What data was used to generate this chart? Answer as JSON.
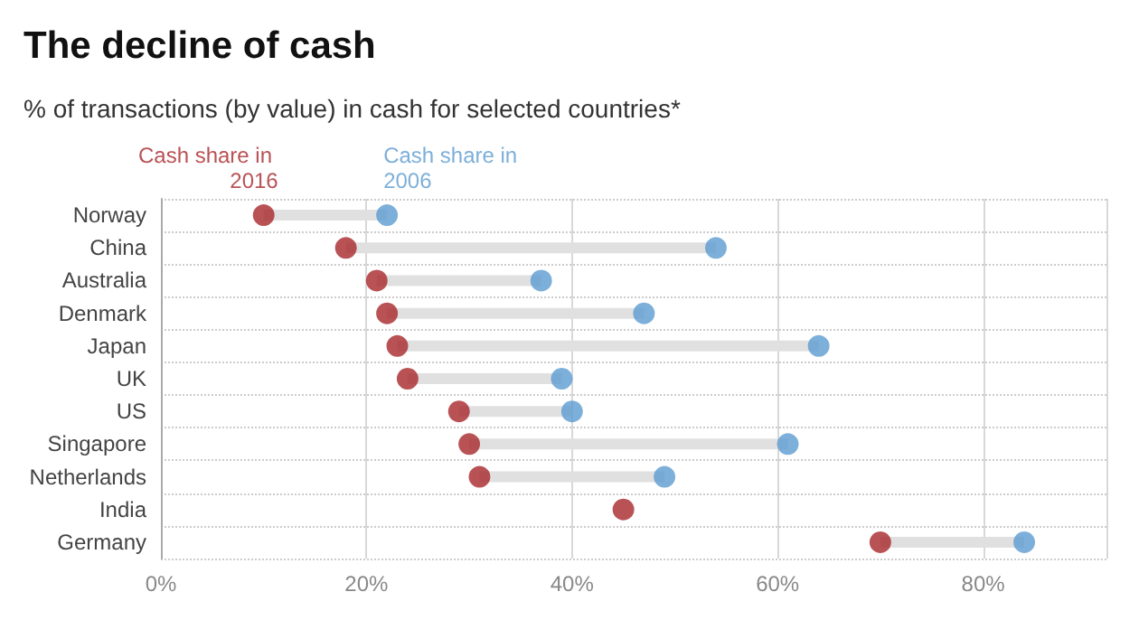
{
  "chart_data": {
    "type": "lollipop",
    "orientation": "horizontal",
    "title": "The decline of cash",
    "subtitle": "% of transactions (by value) in cash for selected countries*",
    "categories": [
      "Norway",
      "China",
      "Australia",
      "Denmark",
      "Japan",
      "UK",
      "US",
      "Singapore",
      "Netherlands",
      "India",
      "Germany"
    ],
    "series": [
      {
        "name": "Cash share in 2016",
        "color": "#a8272a",
        "values": [
          10,
          18,
          21,
          22,
          23,
          24,
          29,
          30,
          31,
          45,
          70
        ]
      },
      {
        "name": "Cash share in 2006",
        "color": "#5b9bd0",
        "values": [
          22,
          54,
          37,
          47,
          64,
          39,
          40,
          61,
          49,
          null,
          84
        ]
      }
    ],
    "xlim": [
      0,
      92
    ],
    "xticks": [
      {
        "value": 0,
        "label": "0%"
      },
      {
        "value": 20,
        "label": "20%"
      },
      {
        "value": 40,
        "label": "40%"
      },
      {
        "value": 60,
        "label": "60%"
      },
      {
        "value": 80,
        "label": "80%"
      }
    ],
    "grid": true,
    "marker": "circle",
    "legend": false
  }
}
